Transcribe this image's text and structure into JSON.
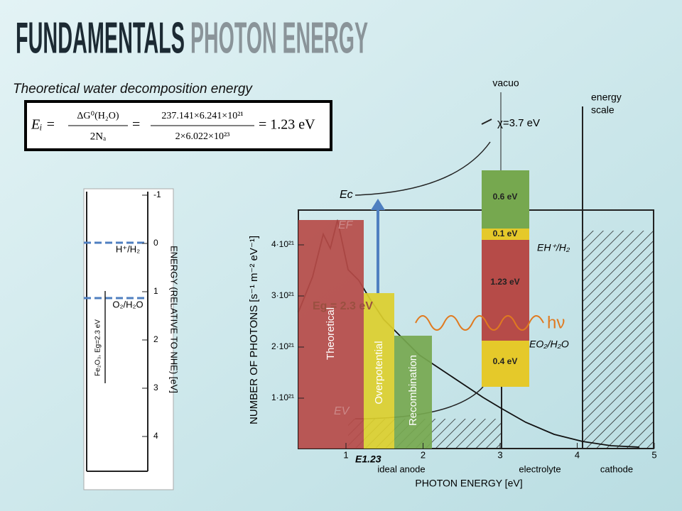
{
  "header": {
    "title_part1": "FUNDAMENTALS",
    "title_part2": "PHOTON ENERGY",
    "subtitle": "Theoretical water decomposition energy"
  },
  "equation": {
    "lhs": "Eᵢ =",
    "num1": "ΔG⁰(H₂O)",
    "den1": "2Nₐ",
    "eq2": "=",
    "num2": "237.141×6.241×10²¹",
    "den2": "2×6.022×10²³",
    "rhs": "= 1.23 eV"
  },
  "left_figure": {
    "axis_label": "ENERGY (RELATIVE TO NHE) [eV]",
    "ticks": [
      "-1",
      "0",
      "1",
      "2",
      "3",
      "4"
    ],
    "h_level": "H⁺/H₂",
    "o_level": "O₂/H₂O",
    "material": "Fe₂O₃, Eg=2.3 eV"
  },
  "bars": {
    "theoretical": "Theoretical",
    "overpotential": "Overpotential",
    "recombination": "Recombination"
  },
  "energy_column": {
    "a": "0.6 eV",
    "b": "0.1 eV",
    "c": "1.23 eV",
    "d": "0.4 eV"
  },
  "right_figure": {
    "vacuo": "vacuo",
    "energy_scale_1": "energy",
    "energy_scale_2": "scale",
    "chi": "χ=3.7 eV",
    "ec": "Eс",
    "ef": "EF",
    "eg": "Eg = 2.3 eV",
    "ev": "EV",
    "eh": "EH⁺/H₂",
    "eo": "EO₂/H₂O",
    "hv": "hν",
    "y_label": "NUMBER OF PHOTONS [s⁻¹ m⁻² eV⁻¹]",
    "y_ticks": [
      "4·10²¹",
      "3·10²¹",
      "2·10²¹",
      "1·10²¹"
    ],
    "x_ticks": [
      "1",
      "2",
      "3",
      "4",
      "5"
    ],
    "x_label": "PHOTON ENERGY [eV]",
    "e123": "E1.23",
    "anode": "ideal anode",
    "electrolyte": "electrolyte",
    "cathode": "cathode"
  }
}
